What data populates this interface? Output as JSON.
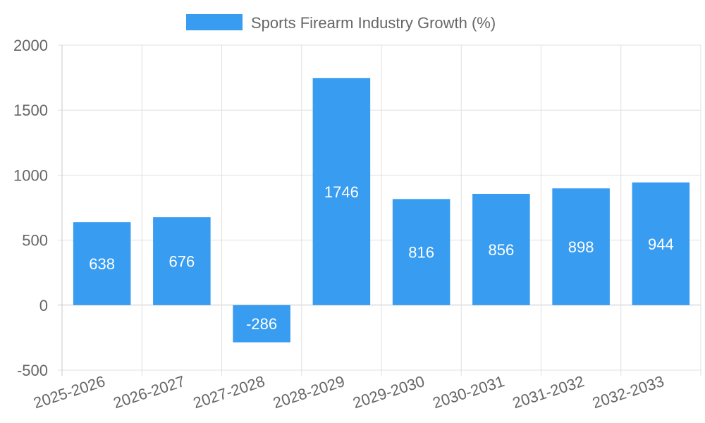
{
  "chart_data": {
    "type": "bar",
    "categories": [
      "2025-2026",
      "2026-2027",
      "2027-2028",
      "2028-2029",
      "2029-2030",
      "2030-2031",
      "2031-2032",
      "2032-2033"
    ],
    "series": [
      {
        "name": "Sports Firearm Industry Growth (%)",
        "values": [
          638,
          676,
          -286,
          1746,
          816,
          856,
          898,
          944
        ],
        "color": "#389cf0"
      }
    ],
    "ylim": [
      -500,
      2000
    ],
    "yticks": [
      "2000",
      "1500",
      "1000",
      "500",
      "0",
      "-500"
    ],
    "ytick_values": [
      2000,
      1500,
      1000,
      500,
      0,
      -500
    ],
    "legend_position": "top",
    "grid": true,
    "data_labels": [
      "638",
      "676",
      "-286",
      "1746",
      "816",
      "856",
      "898",
      "944"
    ]
  }
}
